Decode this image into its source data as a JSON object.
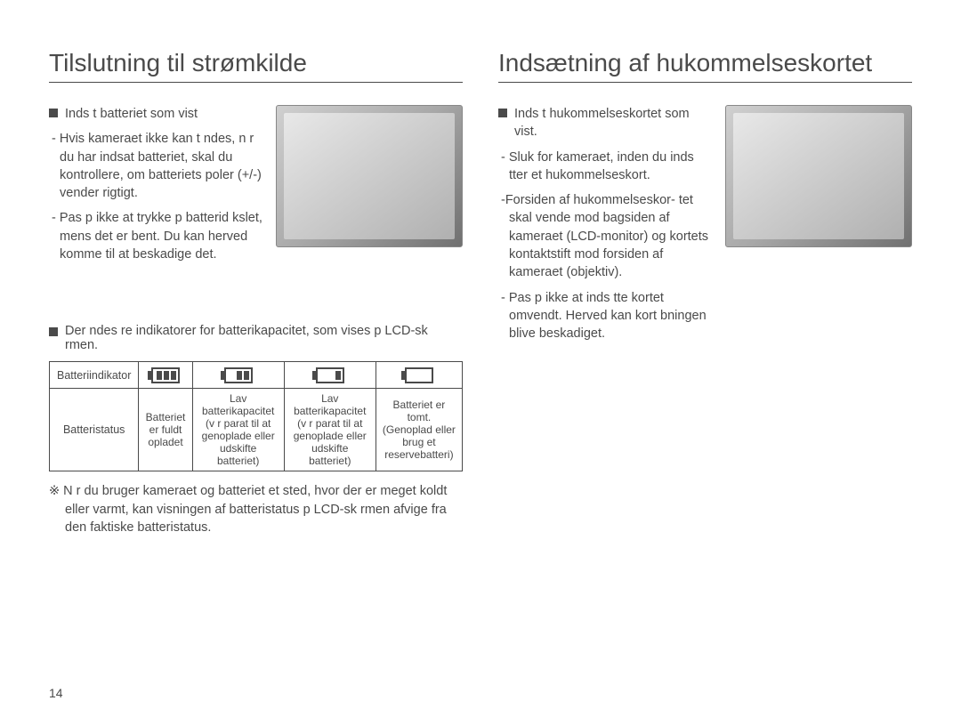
{
  "left": {
    "heading": "Tilslutning til strømkilde",
    "bullet1": "Inds t batteriet som vist",
    "sub1": "- Hvis kameraet ikke kan t ndes, n r du har indsat batteriet, skal du kontrollere, om batteriets poler (+/-) vender rigtigt.",
    "sub2": "- Pas p  ikke at trykke p  batterid kslet, mens det er  bent. Du kan herved komme til at beskadige det.",
    "indicator_intro": "Der  ndes  re indikatorer for batterikapacitet, som vises p  LCD-sk rmen.",
    "table": {
      "row1_header": "Batteriindikator",
      "row2_header": "Batteristatus",
      "status_full": "Batteriet er fuldt opladet",
      "status_low1": "Lav batterikapacitet (v r parat til at genoplade eller udskifte batteriet)",
      "status_low2": "Lav batterikapacitet (v r parat til at genoplade eller udskifte batteriet)",
      "status_empty": "Batteriet er tomt. (Genoplad eller brug et reservebatteri)",
      "bars": [
        3,
        2,
        1,
        0
      ]
    },
    "note": "※ N r du bruger kameraet og batteriet et sted, hvor der er meget koldt eller varmt, kan visningen af batteristatus p  LCD-sk rmen afvige fra den faktiske batteristatus."
  },
  "right": {
    "heading": "Indsætning af hukommelseskortet",
    "bullet1": "Inds t hukommelseskortet som vist.",
    "sub1": "- Sluk for kameraet, inden du inds tter et hukommelseskort.",
    "sub2": "-Forsiden af hukommelseskor- tet skal vende mod bagsiden af kameraet (LCD-monitor) og kortets kontaktstift mod forsiden af kameraet (objektiv).",
    "sub3": "- Pas p  ikke at inds tte kortet omvendt. Herved kan kort bningen blive beskadiget."
  },
  "page_number": "14",
  "colors": {
    "text": "#4a4a4a",
    "border": "#4a4a4a",
    "background": "#ffffff"
  }
}
